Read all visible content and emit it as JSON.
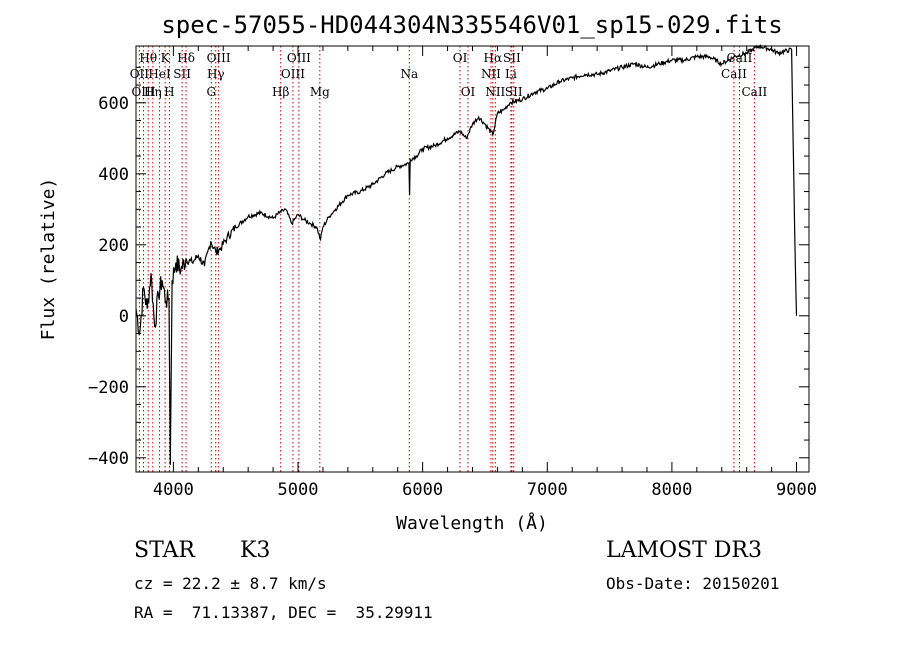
{
  "chart_data": {
    "type": "line",
    "title": "spec-57055-HD044304N335546V01_sp15-029.fits",
    "xlabel": "Wavelength (Å)",
    "ylabel": "Flux (relative)",
    "xlim": [
      3700,
      9100
    ],
    "ylim": [
      -440,
      760
    ],
    "xticks": [
      4000,
      5000,
      6000,
      7000,
      8000,
      9000
    ],
    "yticks": [
      -400,
      -200,
      0,
      200,
      400,
      600
    ],
    "grid": false,
    "series": [
      {
        "values_x": [
          3700,
          3730,
          3760,
          3790,
          3820,
          3850,
          3880,
          3910,
          3940,
          3965,
          3975,
          3990,
          4020,
          4060,
          4100,
          4150,
          4200,
          4250,
          4300,
          4340,
          4380,
          4430,
          4500,
          4600,
          4700,
          4800,
          4850,
          4900,
          4950,
          5000,
          5050,
          5100,
          5150,
          5180,
          5200,
          5250,
          5300,
          5400,
          5500,
          5600,
          5700,
          5800,
          5890,
          5895,
          5900,
          5950,
          6000,
          6100,
          6200,
          6300,
          6350,
          6400,
          6450,
          6500,
          6563,
          6600,
          6650,
          6700,
          6800,
          6900,
          7000,
          7100,
          7200,
          7300,
          7400,
          7500,
          7600,
          7700,
          7800,
          7900,
          8000,
          8100,
          8200,
          8300,
          8400,
          8500,
          8600,
          8700,
          8800,
          8850,
          8960,
          8990,
          9000
        ],
        "values_y": [
          20,
          -50,
          80,
          20,
          120,
          -30,
          60,
          100,
          40,
          50,
          -420,
          100,
          150,
          130,
          160,
          150,
          170,
          140,
          210,
          180,
          190,
          220,
          250,
          280,
          290,
          275,
          290,
          300,
          260,
          285,
          270,
          260,
          250,
          215,
          250,
          280,
          300,
          340,
          350,
          370,
          400,
          420,
          430,
          340,
          440,
          450,
          470,
          480,
          500,
          520,
          500,
          540,
          560,
          540,
          510,
          570,
          580,
          600,
          610,
          630,
          640,
          660,
          670,
          680,
          680,
          690,
          700,
          710,
          700,
          710,
          720,
          720,
          730,
          730,
          710,
          730,
          740,
          760,
          750,
          740,
          750,
          150,
          0
        ]
      }
    ],
    "spectral_lines": [
      {
        "name": "Hθ",
        "wl": 3798,
        "row": 1
      },
      {
        "name": "OII",
        "wl": 3727,
        "row": 2
      },
      {
        "name": "OIII",
        "wl": 3760,
        "row": 3
      },
      {
        "name": "K",
        "wl": 3934,
        "row": 1
      },
      {
        "name": "HeI",
        "wl": 3889,
        "row": 2
      },
      {
        "name": "Hη",
        "wl": 3835,
        "row": 3
      },
      {
        "name": "Hδ",
        "wl": 4102,
        "row": 1
      },
      {
        "name": "SII",
        "wl": 4070,
        "row": 2
      },
      {
        "name": "H",
        "wl": 3968,
        "row": 3
      },
      {
        "name": "OIII",
        "wl": 4363,
        "row": 1
      },
      {
        "name": "Hγ",
        "wl": 4340,
        "row": 2
      },
      {
        "name": "G",
        "wl": 4304,
        "row": 3
      },
      {
        "name": "OIII",
        "wl": 5007,
        "row": 1
      },
      {
        "name": "OIII",
        "wl": 4959,
        "row": 2
      },
      {
        "name": "Hβ",
        "wl": 4861,
        "row": 3
      },
      {
        "name": "Mg",
        "wl": 5175,
        "row": 3
      },
      {
        "name": "Na",
        "wl": 5893,
        "row": 2
      },
      {
        "name": "OI",
        "wl": 6300,
        "row": 1
      },
      {
        "name": "OI",
        "wl": 6364,
        "row": 3
      },
      {
        "name": "Hα",
        "wl": 6563,
        "row": 1
      },
      {
        "name": "SII",
        "wl": 6716,
        "row": 1
      },
      {
        "name": "NII",
        "wl": 6548,
        "row": 2
      },
      {
        "name": "Li",
        "wl": 6708,
        "row": 2
      },
      {
        "name": "NII",
        "wl": 6583,
        "row": 3
      },
      {
        "name": "SII",
        "wl": 6731,
        "row": 3
      },
      {
        "name": "CaII",
        "wl": 8542,
        "row": 1
      },
      {
        "name": "CaII",
        "wl": 8498,
        "row": 2
      },
      {
        "name": "CaII",
        "wl": 8662,
        "row": 3
      }
    ]
  },
  "info": {
    "class_label": "STAR",
    "subclass": "K3",
    "survey": "LAMOST DR3",
    "cz": "cz = 22.2 ± 8.7 km/s",
    "obs_date": "Obs-Date: 20150201",
    "radec": "RA =  71.13387, DEC =  35.29911"
  },
  "colors": {
    "line_marker": "#cc0000",
    "spectrum": "#000000"
  }
}
